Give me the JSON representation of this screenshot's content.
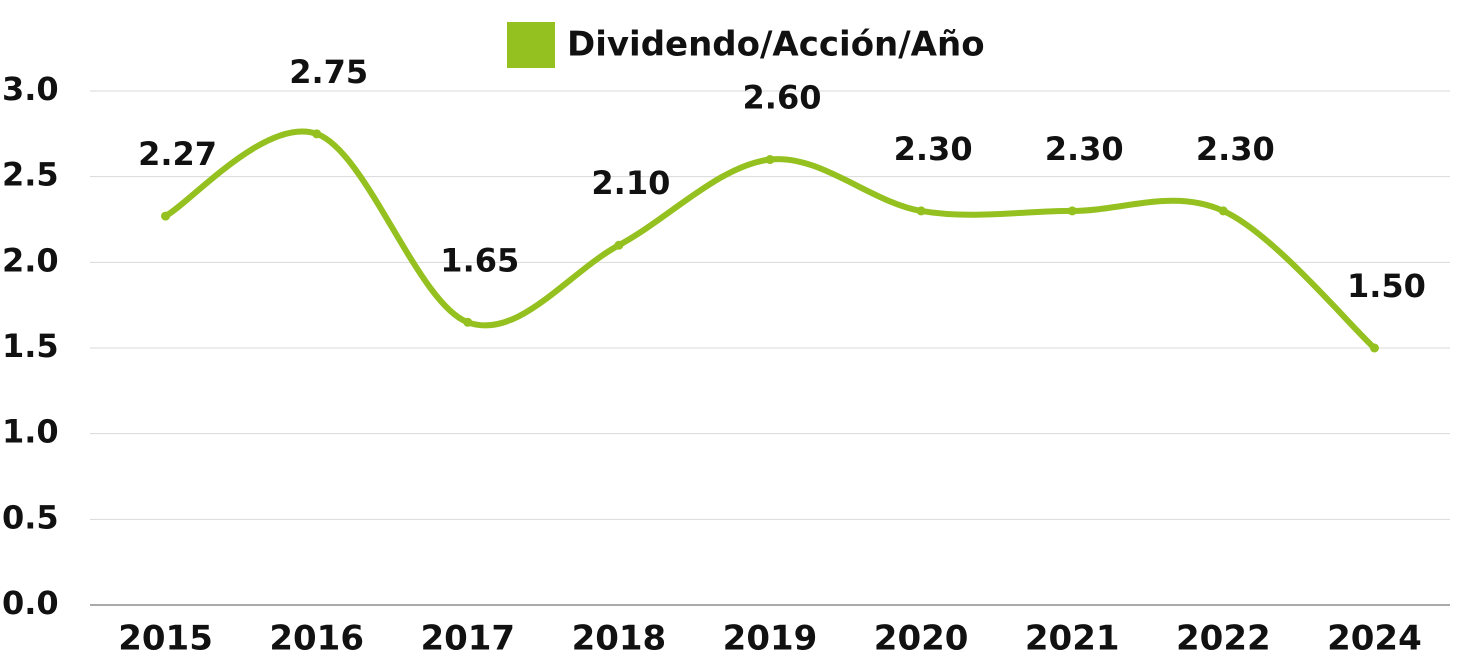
{
  "chart_data": {
    "type": "line",
    "categories": [
      "2015",
      "2016",
      "2017",
      "2018",
      "2019",
      "2020",
      "2021",
      "2022",
      "2024"
    ],
    "series": [
      {
        "name": "Dividendo/Acción/Año",
        "color": "#94c11f",
        "values": [
          2.27,
          2.75,
          1.65,
          2.1,
          2.6,
          2.3,
          2.3,
          2.3,
          1.5
        ],
        "value_labels": [
          "2.27",
          "2.75",
          "1.65",
          "2.10",
          "2.60",
          "2.30",
          "2.30",
          "2.30",
          "1.50"
        ]
      }
    ],
    "ylim": [
      0,
      3
    ],
    "yticks": [
      {
        "value": 0,
        "label": "0.0"
      },
      0.5,
      {
        "value": 1,
        "label": "1.0"
      },
      1.5,
      {
        "value": 2,
        "label": "2.0"
      },
      2.5,
      {
        "value": 3,
        "label": "3.0"
      }
    ],
    "grid": true,
    "smooth": true,
    "legend": "top"
  }
}
